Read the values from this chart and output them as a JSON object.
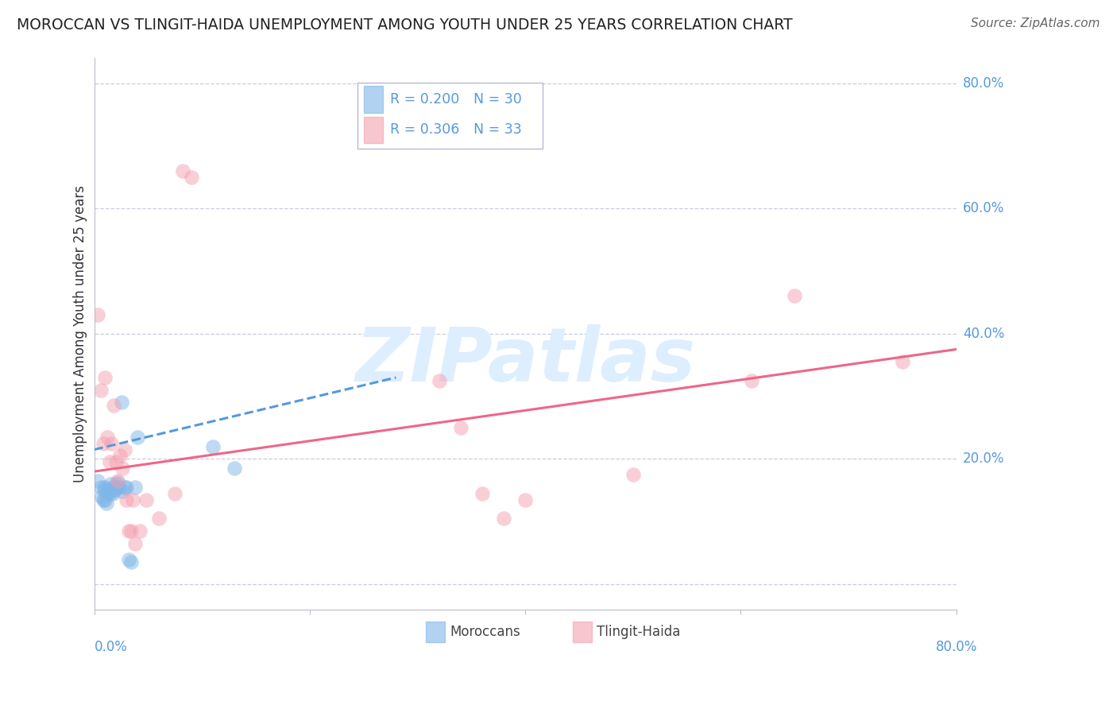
{
  "title": "MOROCCAN VS TLINGIT-HAIDA UNEMPLOYMENT AMONG YOUTH UNDER 25 YEARS CORRELATION CHART",
  "source": "Source: ZipAtlas.com",
  "ylabel": "Unemployment Among Youth under 25 years",
  "legend_moroccan_R": "R = 0.200",
  "legend_moroccan_N": "N = 30",
  "legend_tlingit_R": "R = 0.306",
  "legend_tlingit_N": "N = 33",
  "moroccan_color": "#7EB6E8",
  "tlingit_color": "#F4A0B0",
  "moroccan_line_color": "#5599DD",
  "tlingit_line_color": "#EE6688",
  "watermark": "ZIPatlas",
  "background_color": "#FFFFFF",
  "grid_color": "#CCCCDD",
  "xlim": [
    0.0,
    0.8
  ],
  "ylim": [
    -0.04,
    0.84
  ],
  "ytick_vals": [
    0.0,
    0.2,
    0.4,
    0.6,
    0.8
  ],
  "ytick_labels": [
    "",
    "20.0%",
    "40.0%",
    "60.0%",
    "80.0%"
  ],
  "moroccan_x": [
    0.003,
    0.006,
    0.007,
    0.008,
    0.009,
    0.01,
    0.01,
    0.011,
    0.012,
    0.013,
    0.014,
    0.015,
    0.016,
    0.017,
    0.018,
    0.019,
    0.02,
    0.021,
    0.022,
    0.023,
    0.025,
    0.026,
    0.028,
    0.03,
    0.032,
    0.034,
    0.038,
    0.04,
    0.11,
    0.13
  ],
  "moroccan_y": [
    0.165,
    0.155,
    0.14,
    0.135,
    0.15,
    0.155,
    0.135,
    0.13,
    0.148,
    0.152,
    0.145,
    0.16,
    0.148,
    0.145,
    0.155,
    0.15,
    0.16,
    0.155,
    0.162,
    0.155,
    0.29,
    0.148,
    0.155,
    0.155,
    0.04,
    0.035,
    0.155,
    0.235,
    0.22,
    0.185
  ],
  "tlingit_x": [
    0.003,
    0.006,
    0.008,
    0.01,
    0.012,
    0.014,
    0.016,
    0.018,
    0.02,
    0.022,
    0.024,
    0.026,
    0.028,
    0.03,
    0.032,
    0.034,
    0.036,
    0.038,
    0.042,
    0.048,
    0.06,
    0.075,
    0.082,
    0.09,
    0.32,
    0.34,
    0.36,
    0.38,
    0.4,
    0.5,
    0.61,
    0.65,
    0.75
  ],
  "tlingit_y": [
    0.43,
    0.31,
    0.225,
    0.33,
    0.235,
    0.195,
    0.225,
    0.285,
    0.195,
    0.165,
    0.205,
    0.185,
    0.215,
    0.135,
    0.085,
    0.085,
    0.135,
    0.065,
    0.085,
    0.135,
    0.105,
    0.145,
    0.66,
    0.65,
    0.325,
    0.25,
    0.145,
    0.105,
    0.135,
    0.175,
    0.325,
    0.46,
    0.355
  ],
  "moroccan_trend_x": [
    0.0,
    0.28
  ],
  "moroccan_trend_y": [
    0.215,
    0.33
  ],
  "tlingit_trend_x": [
    0.0,
    0.8
  ],
  "tlingit_trend_y": [
    0.18,
    0.375
  ]
}
